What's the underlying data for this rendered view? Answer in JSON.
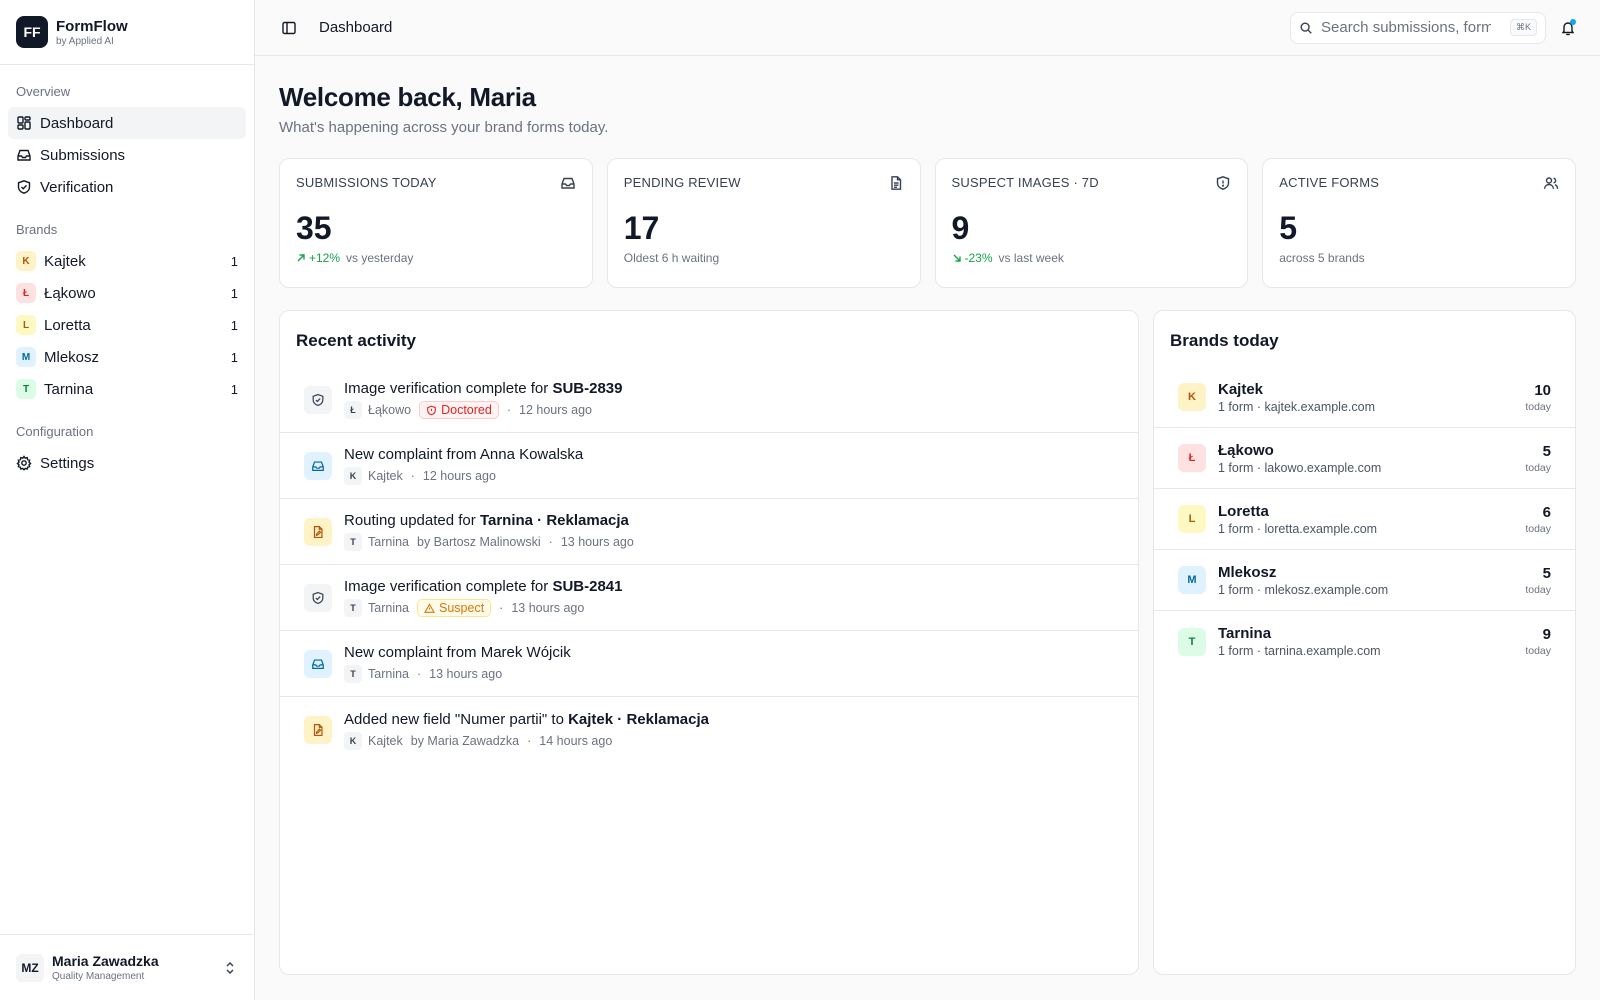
{
  "app": {
    "logo": "FF",
    "name": "FormFlow",
    "sub": "by Applied AI"
  },
  "nav": {
    "overview_heading": "Overview",
    "dashboard": "Dashboard",
    "submissions": "Submissions",
    "verification": "Verification",
    "brands_heading": "Brands",
    "brands": [
      {
        "letter": "K",
        "name": "Kajtek",
        "count": "1",
        "bg": "#fef3c7",
        "fg": "#b45309"
      },
      {
        "letter": "Ł",
        "name": "Łąkowo",
        "count": "1",
        "bg": "#fee2e2",
        "fg": "#dc2626"
      },
      {
        "letter": "L",
        "name": "Loretta",
        "count": "1",
        "bg": "#fef9c3",
        "fg": "#a16207"
      },
      {
        "letter": "M",
        "name": "Mlekosz",
        "count": "1",
        "bg": "#e0f2fe",
        "fg": "#0369a1"
      },
      {
        "letter": "T",
        "name": "Tarnina",
        "count": "1",
        "bg": "#dcfce7",
        "fg": "#15803d"
      }
    ],
    "config_heading": "Configuration",
    "settings": "Settings"
  },
  "user": {
    "initials": "MZ",
    "name": "Maria Zawadzka",
    "role": "Quality Management"
  },
  "topbar": {
    "breadcrumb": "Dashboard",
    "search_placeholder": "Search submissions, forms…",
    "shortcut": "⌘K"
  },
  "welcome": {
    "title": "Welcome back, Maria",
    "subtitle": "What's happening across your brand forms today."
  },
  "stats": [
    {
      "label": "SUBMISSIONS TODAY",
      "value": "35",
      "delta": "+12%",
      "sub": "vs yesterday",
      "icon": "inbox-icon"
    },
    {
      "label": "PENDING REVIEW",
      "value": "17",
      "sub": "Oldest 6 h waiting",
      "icon": "file-text-icon"
    },
    {
      "label": "SUSPECT IMAGES · 7D",
      "value": "9",
      "delta": "-23%",
      "sub": "vs last week",
      "icon": "shield-icon"
    },
    {
      "label": "ACTIVE FORMS",
      "value": "5",
      "sub": "across 5 brands",
      "icon": "users-icon"
    }
  ],
  "activity": {
    "title": "Recent activity",
    "items": [
      {
        "title": "Image verification complete for ",
        "strong": "SUB-2839",
        "letter": "Ł",
        "brand": "Łąkowo",
        "pill": "Doctored",
        "time": "12 hours ago"
      },
      {
        "title": "New complaint from Anna Kowalska",
        "letter": "K",
        "brand": "Kajtek",
        "time": "12 hours ago"
      },
      {
        "title": "Routing updated for ",
        "strong": "Tarnina · Reklamacja",
        "letter": "T",
        "brand": "Tarnina",
        "by": "by Bartosz Malinowski",
        "time": "13 hours ago"
      },
      {
        "title": "Image verification complete for ",
        "strong": "SUB-2841",
        "letter": "T",
        "brand": "Tarnina",
        "pill": "Suspect",
        "time": "13 hours ago"
      },
      {
        "title": "New complaint from Marek Wójcik",
        "letter": "T",
        "brand": "Tarnina",
        "time": "13 hours ago"
      },
      {
        "title": "Added new field \"Numer partii\" to ",
        "strong": "Kajtek · Reklamacja",
        "letter": "K",
        "brand": "Kajtek",
        "by": "by Maria Zawadzka",
        "time": "14 hours ago"
      }
    ]
  },
  "brands_today": {
    "title": "Brands today",
    "items": [
      {
        "letter": "K",
        "name": "Kajtek",
        "sub": "1 form · kajtek.example.com",
        "count": "10",
        "today": "today"
      },
      {
        "letter": "Ł",
        "name": "Łąkowo",
        "sub": "1 form · lakowo.example.com",
        "count": "5",
        "today": "today"
      },
      {
        "letter": "L",
        "name": "Loretta",
        "sub": "1 form · loretta.example.com",
        "count": "6",
        "today": "today"
      },
      {
        "letter": "M",
        "name": "Mlekosz",
        "sub": "1 form · mlekosz.example.com",
        "count": "5",
        "today": "today"
      },
      {
        "letter": "T",
        "name": "Tarnina",
        "sub": "1 form · tarnina.example.com",
        "count": "9",
        "today": "today"
      }
    ]
  }
}
